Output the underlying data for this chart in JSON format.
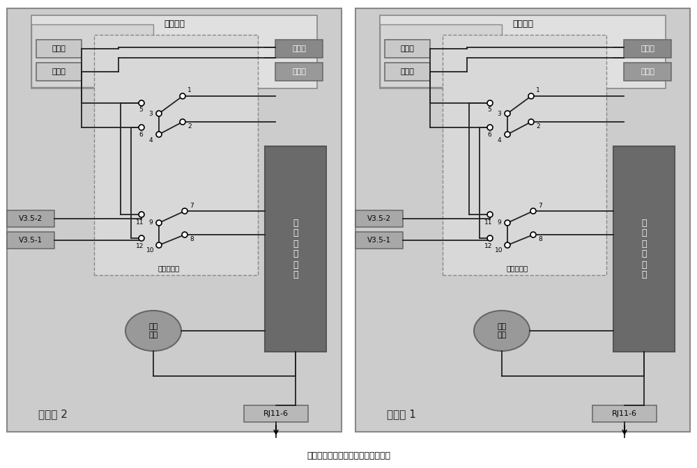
{
  "fig_width": 10.0,
  "fig_height": 6.72,
  "bg_color": "#ffffff",
  "outer_bg": "#cccccc",
  "outer_ec": "#888888",
  "handset_bg": "#e0e0e0",
  "handset_ec": "#888888",
  "dashed_bg": "#d8d8d8",
  "sender_bg": "#888888",
  "sender_ec": "#666666",
  "receiver_bg": "#999999",
  "receiver_ec": "#666666",
  "mike_bg": "#c8c8c8",
  "mike_ec": "#666666",
  "v35_bg": "#a8a8a8",
  "v35_ec": "#666666",
  "magnet_bg": "#6a6a6a",
  "magnet_ec": "#555555",
  "bell_bg": "#999999",
  "bell_ec": "#666666",
  "rj11_bg": "#b8b8b8",
  "rj11_ec": "#666666",
  "line_color": "#222222",
  "bottom_label": "被复线、音频电缆、网线、双绞线等",
  "phone2_label": "电话机 2",
  "phone1_label": "电话机 1",
  "handset_label": "电话手柄",
  "mike_label": "麦克风",
  "speaker_label": "扬声器",
  "sender_label": "送话器",
  "receiver_label": "受话器",
  "v352_label": "V3.5-2",
  "v351_label": "V3.5-1",
  "converter_label": "功能转换器",
  "magnet_label": "磁\n石\n电\n话\n电\n路",
  "bell_label": "振铃\n开关",
  "rj11_label": "RJ11-6"
}
